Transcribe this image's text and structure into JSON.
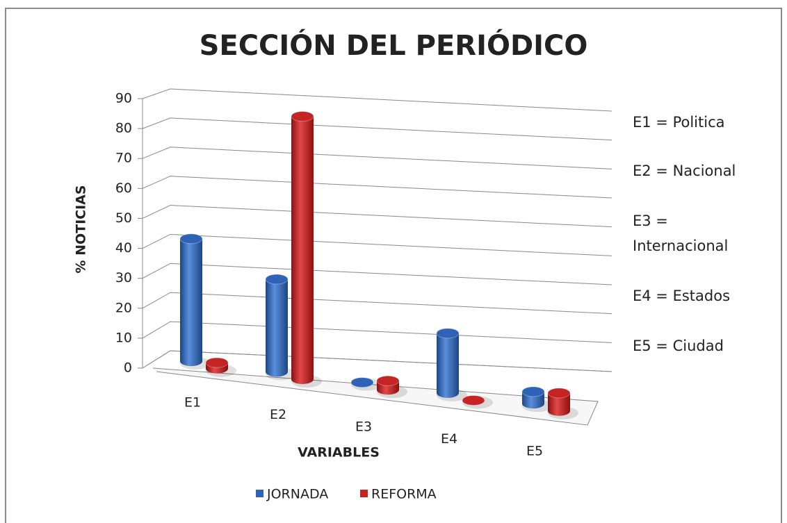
{
  "chart_data": {
    "type": "bar3d",
    "title": "SECCIÓN DEL PERIÓDICO",
    "x_label": "VARIABLES",
    "y_label": "% NOTICIAS",
    "categories": [
      "E1",
      "E2",
      "E3",
      "E4",
      "E5"
    ],
    "series": [
      {
        "name": "JORNADA",
        "color": "#2f63b8",
        "values": [
          41,
          31,
          0,
          20,
          4
        ]
      },
      {
        "name": "REFORMA",
        "color": "#c42424",
        "values": [
          2,
          88,
          3,
          0,
          6
        ]
      }
    ],
    "ylim": [
      0,
      90
    ],
    "yticks": [
      0,
      10,
      20,
      30,
      40,
      50,
      60,
      70,
      80,
      90
    ],
    "grid": true,
    "legend": "bottom",
    "annotations": [
      "E1 = Politica",
      "E2 = Nacional",
      "E3 = Internacional",
      "E4 = Estados",
      "E5 = Ciudad"
    ]
  }
}
